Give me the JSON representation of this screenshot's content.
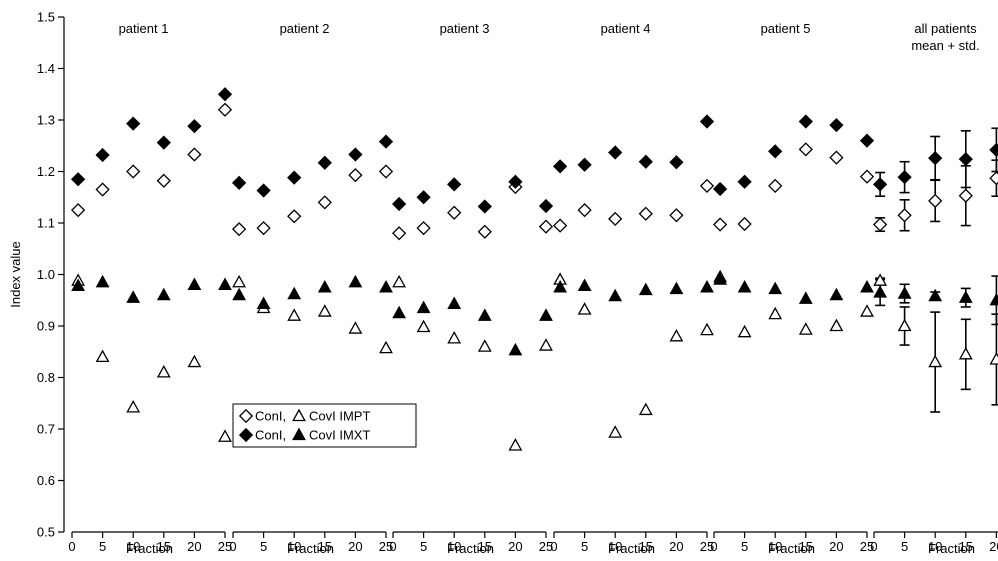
{
  "chart_data": {
    "type": "scatter",
    "ylabel": "Index value",
    "xlabel": "Fraction",
    "ylim": [
      0.5,
      1.5
    ],
    "xlim": [
      0,
      25
    ],
    "y_ticks": [
      "0.5",
      "0.6",
      "0.7",
      "0.8",
      "0.9",
      "1.0",
      "1.1",
      "1.2",
      "1.3",
      "1.4",
      "1.5"
    ],
    "x_ticks": [
      "0",
      "5",
      "10",
      "15",
      "20",
      "25"
    ],
    "x_values": [
      1,
      5,
      10,
      15,
      20,
      25
    ],
    "legend": {
      "row1": {
        "left": "ConI,",
        "right": "CovI IMPT"
      },
      "row2": {
        "left": "ConI,",
        "right": "CovI IMXT"
      }
    },
    "colors": {
      "filled": "#000000",
      "open": "#ffffff",
      "stroke": "#000000"
    },
    "panels": [
      {
        "title": "patient 1",
        "series": {
          "conI_impt": [
            1.125,
            1.165,
            1.2,
            1.182,
            1.233,
            1.32
          ],
          "conI_imxt": [
            1.185,
            1.232,
            1.293,
            1.256,
            1.288,
            1.35
          ],
          "covI_impt": [
            0.988,
            0.84,
            0.742,
            0.81,
            0.83,
            0.685
          ],
          "covI_imxt": [
            0.978,
            0.985,
            0.955,
            0.96,
            0.98,
            0.98
          ]
        }
      },
      {
        "title": "patient 2",
        "series": {
          "conI_impt": [
            1.088,
            1.09,
            1.113,
            1.14,
            1.193,
            1.2
          ],
          "conI_imxt": [
            1.178,
            1.163,
            1.188,
            1.217,
            1.233,
            1.258
          ],
          "covI_impt": [
            0.985,
            0.935,
            0.92,
            0.928,
            0.895,
            0.857
          ],
          "covI_imxt": [
            0.96,
            0.943,
            0.962,
            0.975,
            0.985,
            0.975
          ]
        }
      },
      {
        "title": "patient 3",
        "series": {
          "conI_impt": [
            1.08,
            1.09,
            1.12,
            1.083,
            1.17,
            1.093
          ],
          "conI_imxt": [
            1.137,
            1.15,
            1.175,
            1.132,
            1.18,
            1.133
          ],
          "covI_impt": [
            0.985,
            0.898,
            0.876,
            0.86,
            0.668,
            0.862
          ],
          "covI_imxt": [
            0.925,
            0.935,
            0.943,
            0.92,
            0.853,
            0.92
          ]
        }
      },
      {
        "title": "patient 4",
        "series": {
          "conI_impt": [
            1.095,
            1.125,
            1.108,
            1.118,
            1.115,
            1.172
          ],
          "conI_imxt": [
            1.21,
            1.213,
            1.237,
            1.219,
            1.218,
            1.297
          ],
          "covI_impt": [
            0.99,
            0.932,
            0.693,
            0.737,
            0.88,
            0.892
          ],
          "covI_imxt": [
            0.975,
            0.978,
            0.958,
            0.97,
            0.972,
            0.975
          ]
        }
      },
      {
        "title": "patient 5",
        "series": {
          "conI_impt": [
            1.097,
            1.098,
            1.172,
            1.243,
            1.227,
            1.19
          ],
          "conI_imxt": [
            1.166,
            1.18,
            1.239,
            1.297,
            1.29,
            1.26
          ],
          "covI_impt": [
            0.995,
            0.888,
            0.923,
            0.893,
            0.9,
            0.928
          ],
          "covI_imxt": [
            0.99,
            0.975,
            0.972,
            0.953,
            0.96,
            0.975
          ]
        }
      },
      {
        "title": "all patients",
        "subtitle": "mean + std.",
        "series": {
          "conI_impt": [
            1.097,
            1.115,
            1.143,
            1.153,
            1.187,
            1.195
          ],
          "conI_imxt": [
            1.175,
            1.189,
            1.226,
            1.224,
            1.242,
            1.258
          ],
          "covI_impt": [
            0.988,
            0.9,
            0.83,
            0.845,
            0.835,
            0.845
          ],
          "covI_imxt": [
            0.965,
            0.963,
            0.958,
            0.955,
            0.95,
            0.965
          ]
        },
        "errors": {
          "conI_impt": [
            0.013,
            0.03,
            0.04,
            0.058,
            0.035,
            0.06
          ],
          "conI_imxt": [
            0.023,
            0.03,
            0.042,
            0.055,
            0.042,
            0.072
          ],
          "covI_impt": [
            0.005,
            0.037,
            0.097,
            0.068,
            0.088,
            0.085
          ],
          "covI_imxt": [
            0.025,
            0.018,
            0.008,
            0.018,
            0.047,
            0.022
          ]
        }
      }
    ]
  }
}
